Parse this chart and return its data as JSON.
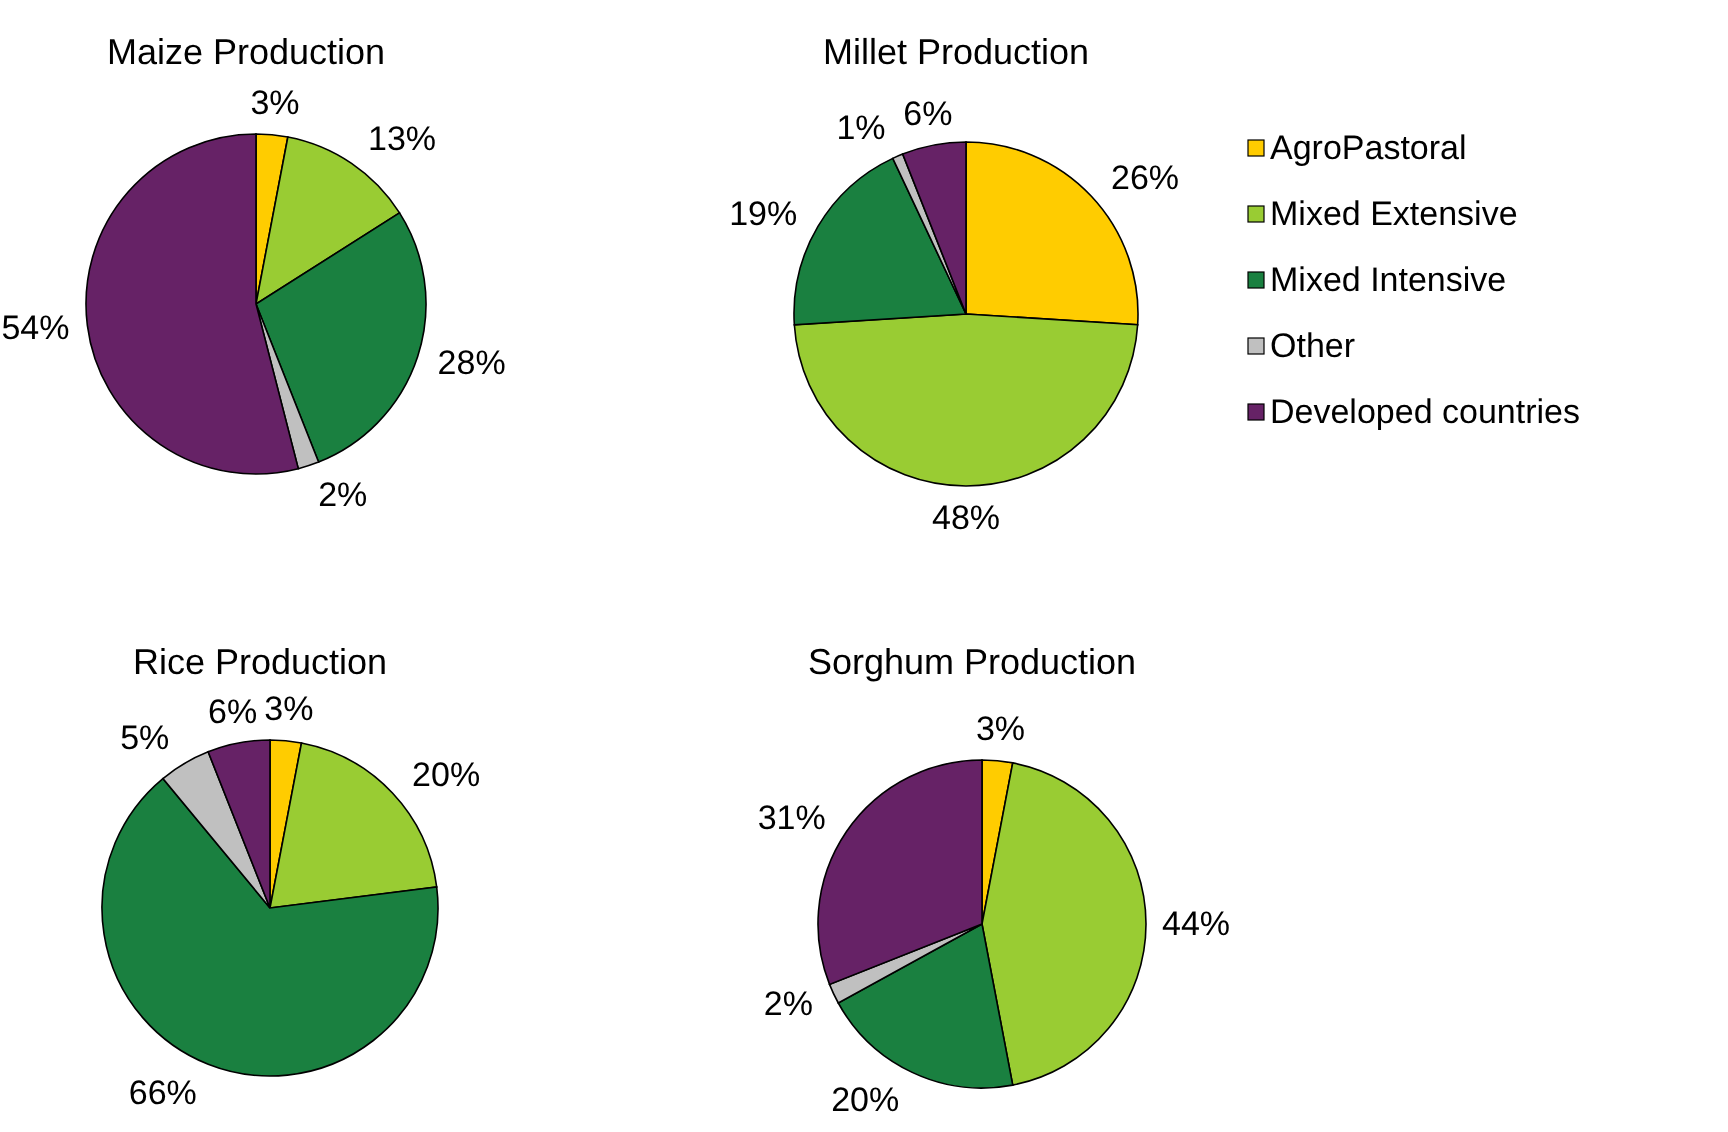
{
  "chart_data": [
    {
      "type": "pie",
      "title": "Maize Production",
      "values": [
        3,
        13,
        28,
        2,
        54
      ],
      "value_labels": [
        "3%",
        "13%",
        "28%",
        "2%",
        "54%"
      ],
      "colors": [
        "#ffcc00",
        "#99cc33",
        "#1a8040",
        "#c0c0c0",
        "#662266"
      ],
      "legend": false
    },
    {
      "type": "pie",
      "title": "Millet Production",
      "categories": [
        "AgroPastoral",
        "Mixed Extensive",
        "Mixed Intensive",
        "Other",
        "Developed countries"
      ],
      "values": [
        26,
        48,
        19,
        1,
        6
      ],
      "value_labels": [
        "26%",
        "48%",
        "19%",
        "1%",
        "6%"
      ],
      "colors": [
        "#ffcc00",
        "#99cc33",
        "#1a8040",
        "#c0c0c0",
        "#662266"
      ],
      "legend": "right"
    },
    {
      "type": "pie",
      "title": "Rice Production",
      "values": [
        3,
        20,
        66,
        5,
        6
      ],
      "value_labels": [
        "3%",
        "20%",
        "66%",
        "5%",
        "6%"
      ],
      "colors": [
        "#ffcc00",
        "#99cc33",
        "#1a8040",
        "#c0c0c0",
        "#662266"
      ],
      "legend": false
    },
    {
      "type": "pie",
      "title": "Sorghum Production",
      "values": [
        3,
        44,
        20,
        2,
        31
      ],
      "value_labels": [
        "3%",
        "44%",
        "20%",
        "2%",
        "31%"
      ],
      "colors": [
        "#ffcc00",
        "#99cc33",
        "#1a8040",
        "#c0c0c0",
        "#662266"
      ],
      "legend": false
    }
  ]
}
